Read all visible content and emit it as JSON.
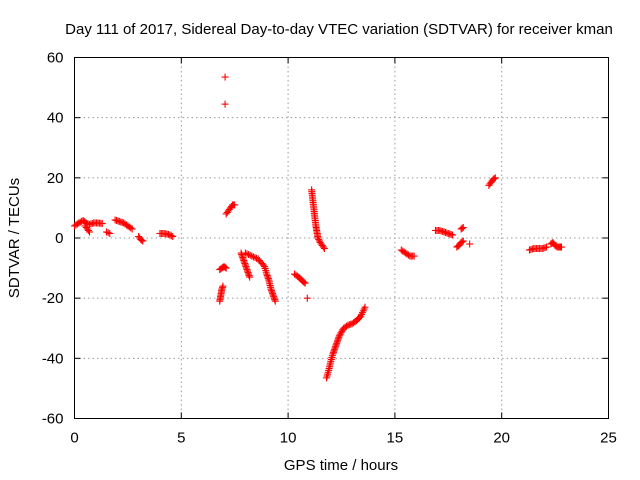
{
  "chart_data": {
    "type": "scatter",
    "title": "Day 111 of 2017, Sidereal Day-to-day VTEC variation (SDTVAR) for receiver kman",
    "xlabel": "GPS time / hours",
    "ylabel": "SDTVAR / TECUs",
    "xlim": [
      0,
      25
    ],
    "ylim": [
      -60,
      60
    ],
    "xticks": [
      "0",
      "5",
      "10",
      "15",
      "20",
      "25"
    ],
    "yticks": [
      "-60",
      "-40",
      "-20",
      "0",
      "20",
      "40",
      "60"
    ],
    "grid": true,
    "marker": "+",
    "color": "#ff0000",
    "series": [
      {
        "name": "SDTVAR",
        "segments": [
          [
            [
              0.0,
              4.0
            ],
            [
              0.2,
              5.0
            ],
            [
              0.4,
              5.8
            ],
            [
              0.55,
              5.0
            ],
            [
              0.7,
              4.5
            ],
            [
              0.9,
              5.0
            ],
            [
              1.1,
              5.0
            ],
            [
              1.3,
              4.8
            ]
          ],
          [
            [
              0.5,
              4.0
            ],
            [
              0.6,
              3.0
            ],
            [
              0.7,
              2.0
            ]
          ],
          [
            [
              1.5,
              2.0
            ],
            [
              1.65,
              1.5
            ]
          ],
          [
            [
              1.9,
              6.0
            ],
            [
              2.1,
              5.5
            ],
            [
              2.3,
              5.0
            ],
            [
              2.5,
              4.0
            ],
            [
              2.7,
              3.0
            ]
          ],
          [
            [
              3.0,
              0.5
            ],
            [
              3.1,
              -0.5
            ],
            [
              3.2,
              -1.0
            ]
          ],
          [
            [
              4.0,
              1.5
            ],
            [
              4.2,
              1.5
            ],
            [
              4.4,
              1.2
            ],
            [
              4.6,
              0.5
            ]
          ],
          [
            [
              6.8,
              -21.0
            ],
            [
              6.85,
              -19.0
            ],
            [
              6.9,
              -17.0
            ],
            [
              6.95,
              -16.0
            ]
          ],
          [
            [
              6.8,
              -10.5
            ],
            [
              6.9,
              -10.0
            ],
            [
              7.0,
              -9.5
            ],
            [
              7.1,
              -10.0
            ]
          ],
          [
            [
              7.1,
              8.0
            ],
            [
              7.2,
              9.0
            ],
            [
              7.3,
              10.0
            ],
            [
              7.4,
              11.0
            ],
            [
              7.5,
              11.0
            ]
          ],
          [
            [
              7.05,
              53.5
            ]
          ],
          [
            [
              7.05,
              44.5
            ]
          ],
          [
            [
              7.8,
              -5.0
            ],
            [
              7.9,
              -7.0
            ],
            [
              8.0,
              -9.0
            ],
            [
              8.1,
              -11.0
            ],
            [
              8.2,
              -13.0
            ]
          ],
          [
            [
              8.0,
              -5.0
            ],
            [
              8.3,
              -6.0
            ],
            [
              8.6,
              -7.0
            ],
            [
              8.9,
              -9.5
            ],
            [
              9.0,
              -12.0
            ],
            [
              9.1,
              -14.0
            ],
            [
              9.2,
              -17.0
            ],
            [
              9.3,
              -19.0
            ],
            [
              9.4,
              -21.0
            ]
          ],
          [
            [
              10.3,
              -12.0
            ],
            [
              10.5,
              -13.0
            ],
            [
              10.7,
              -14.5
            ],
            [
              10.8,
              -15.0
            ]
          ],
          [
            [
              10.9,
              -20.0
            ]
          ],
          [
            [
              11.1,
              16.0
            ],
            [
              11.15,
              13.0
            ],
            [
              11.2,
              10.0
            ],
            [
              11.25,
              7.0
            ],
            [
              11.3,
              4.0
            ],
            [
              11.35,
              2.0
            ],
            [
              11.4,
              0.0
            ],
            [
              11.5,
              -1.5
            ],
            [
              11.6,
              -2.5
            ],
            [
              11.7,
              -3.5
            ]
          ],
          [
            [
              11.8,
              -46.5
            ],
            [
              11.9,
              -44.0
            ],
            [
              12.0,
              -41.0
            ],
            [
              12.1,
              -38.5
            ],
            [
              12.2,
              -36.5
            ],
            [
              12.3,
              -34.5
            ],
            [
              12.4,
              -32.5
            ],
            [
              12.6,
              -30.0
            ],
            [
              12.8,
              -29.0
            ],
            [
              13.0,
              -28.5
            ],
            [
              13.2,
              -27.5
            ],
            [
              13.4,
              -26.0
            ],
            [
              13.6,
              -23.0
            ]
          ],
          [
            [
              15.3,
              -4.0
            ],
            [
              15.5,
              -5.0
            ],
            [
              15.7,
              -6.0
            ],
            [
              15.9,
              -6.0
            ]
          ],
          [
            [
              16.9,
              2.5
            ],
            [
              17.1,
              2.5
            ],
            [
              17.3,
              2.0
            ],
            [
              17.5,
              1.5
            ],
            [
              17.7,
              1.0
            ]
          ],
          [
            [
              17.9,
              -3.0
            ],
            [
              18.0,
              -2.5
            ],
            [
              18.1,
              -1.5
            ],
            [
              18.2,
              -1.0
            ]
          ],
          [
            [
              18.1,
              3.0
            ],
            [
              18.2,
              3.5
            ]
          ],
          [
            [
              18.5,
              -2.0
            ]
          ],
          [
            [
              19.4,
              17.5
            ],
            [
              19.5,
              18.5
            ],
            [
              19.6,
              19.5
            ],
            [
              19.7,
              20.0
            ]
          ],
          [
            [
              21.3,
              -4.0
            ],
            [
              21.5,
              -3.5
            ],
            [
              21.7,
              -3.5
            ],
            [
              21.9,
              -3.5
            ],
            [
              22.1,
              -3.0
            ]
          ],
          [
            [
              22.3,
              -2.0
            ],
            [
              22.4,
              -1.5
            ],
            [
              22.5,
              -2.5
            ],
            [
              22.6,
              -3.0
            ],
            [
              22.7,
              -3.0
            ],
            [
              22.8,
              -3.0
            ]
          ]
        ]
      }
    ]
  }
}
